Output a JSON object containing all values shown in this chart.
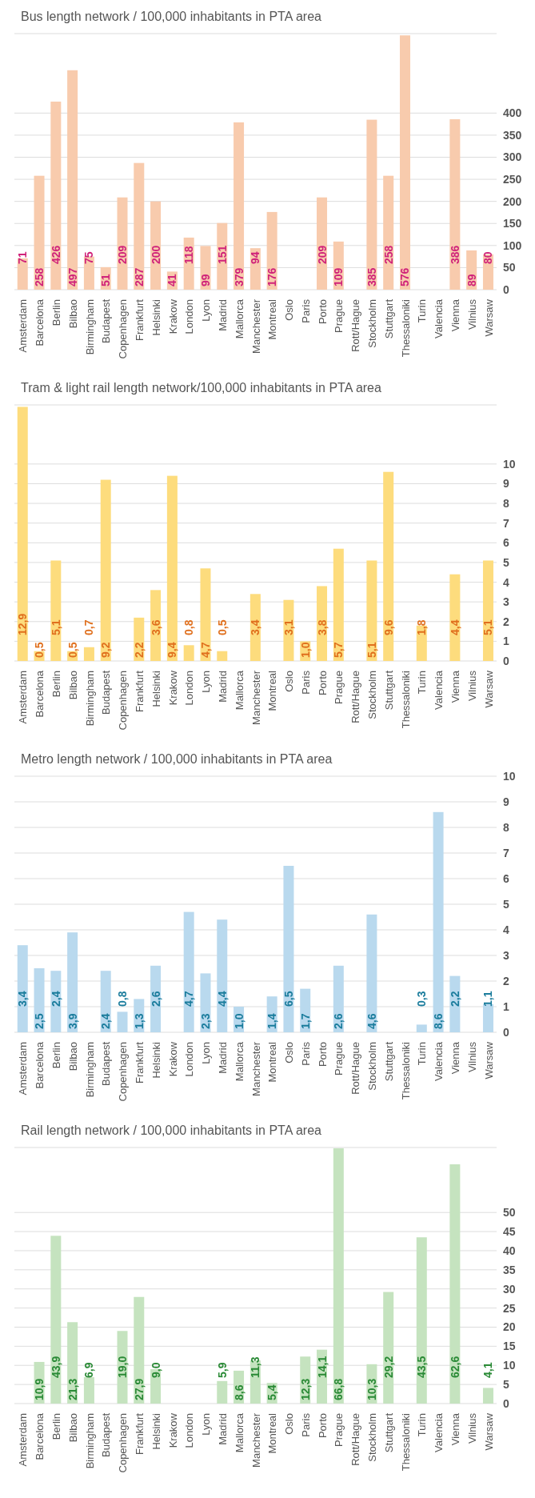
{
  "chart_data": [
    {
      "type": "bar",
      "title": "Bus length network / 100,000  inhabitants in PTA area",
      "categories": [
        "Amsterdam",
        "Barcelona",
        "Berlin",
        "Bilbao",
        "Birmingham",
        "Budapest",
        "Copenhagen",
        "Frankfurt",
        "Helsinki",
        "Krakow",
        "London",
        "Lyon",
        "Madrid",
        "Mallorca",
        "Manchester",
        "Montreal",
        "Oslo",
        "Paris",
        "Porto",
        "Prague",
        "Rott/Hague",
        "Stockholm",
        "Stuttgart",
        "Thessaloniki",
        "Turin",
        "Valencia",
        "Vienna",
        "Vilnius",
        "Warsaw"
      ],
      "values": [
        71,
        258,
        426,
        497,
        75,
        51,
        209,
        287,
        200,
        41,
        118,
        99,
        151,
        379,
        94,
        176,
        null,
        null,
        209,
        109,
        null,
        385,
        258,
        576,
        null,
        null,
        386,
        89,
        80
      ],
      "value_labels": [
        "71",
        "258",
        "426",
        "497",
        "75",
        "51",
        "209",
        "287",
        "200",
        "41",
        "118",
        "99",
        "151",
        "379",
        "94",
        "176",
        null,
        null,
        "209",
        "109",
        null,
        "385",
        "258",
        "576",
        null,
        null,
        "386",
        "89",
        "80"
      ],
      "color": "#f8cbad",
      "ylim": [
        0,
        580
      ],
      "yticks": [
        0,
        50,
        100,
        150,
        200,
        250,
        300,
        350,
        400
      ],
      "grid": "y"
    },
    {
      "type": "bar",
      "title": "Tram & light rail length network/100,000  inhabitants in PTA area",
      "categories": [
        "Amsterdam",
        "Barcelona",
        "Berlin",
        "Bilbao",
        "Birmingham",
        "Budapest",
        "Copenhagen",
        "Frankfurt",
        "Helsinki",
        "Krakow",
        "London",
        "Lyon",
        "Madrid",
        "Mallorca",
        "Manchester",
        "Montreal",
        "Oslo",
        "Paris",
        "Porto",
        "Prague",
        "Rott/Hague",
        "Stockholm",
        "Stuttgart",
        "Thessaloniki",
        "Turin",
        "Valencia",
        "Vienna",
        "Vilnius",
        "Warsaw"
      ],
      "values": [
        12.9,
        0.5,
        5.1,
        0.5,
        0.7,
        9.2,
        null,
        2.2,
        3.6,
        9.4,
        0.8,
        4.7,
        0.5,
        null,
        3.4,
        null,
        3.1,
        1.0,
        3.8,
        5.7,
        null,
        5.1,
        9.6,
        null,
        1.8,
        null,
        4.4,
        null,
        5.1
      ],
      "value_labels": [
        "12,9",
        "0,5",
        "5,1",
        "0,5",
        "0,7",
        "9,2",
        null,
        "2,2",
        "3,6",
        "9,4",
        "0,8",
        "4,7",
        "0,5",
        null,
        "3,4",
        null,
        "3,1",
        "1,0",
        "3,8",
        "5,7",
        null,
        "5,1",
        "9,6",
        null,
        "1,8",
        null,
        "4,4",
        null,
        "5,1"
      ],
      "color": "#fddc7d",
      "ylim": [
        0,
        13
      ],
      "yticks": [
        0,
        1,
        2,
        3,
        4,
        5,
        6,
        7,
        8,
        9,
        10
      ],
      "grid": "y"
    },
    {
      "type": "bar",
      "title": "Metro length network / 100,000 inhabitants in PTA area",
      "categories": [
        "Amsterdam",
        "Barcelona",
        "Berlin",
        "Bilbao",
        "Birmingham",
        "Budapest",
        "Copenhagen",
        "Frankfurt",
        "Helsinki",
        "Krakow",
        "London",
        "Lyon",
        "Madrid",
        "Mallorca",
        "Manchester",
        "Montreal",
        "Oslo",
        "Paris",
        "Porto",
        "Prague",
        "Rott/Hague",
        "Stockholm",
        "Stuttgart",
        "Thessaloniki",
        "Turin",
        "Valencia",
        "Vienna",
        "Vilnius",
        "Warsaw"
      ],
      "values": [
        3.4,
        2.5,
        2.4,
        3.9,
        null,
        2.4,
        0.8,
        1.3,
        2.6,
        null,
        4.7,
        2.3,
        4.4,
        1.0,
        null,
        1.4,
        6.5,
        1.7,
        null,
        2.6,
        null,
        4.6,
        null,
        null,
        0.3,
        8.6,
        2.2,
        null,
        1.1
      ],
      "value_labels": [
        "3,4",
        "2,5",
        "2,4",
        "3,9",
        null,
        "2,4",
        "0,8",
        "1,3",
        "2,6",
        null,
        "4,7",
        "2,3",
        "4,4",
        "1,0",
        null,
        "1,4",
        "6,5",
        "1,7",
        null,
        "2,6",
        null,
        "4,6",
        null,
        null,
        "0,3",
        "8,6",
        "2,2",
        null,
        "1,1"
      ],
      "color": "#b9d9ee",
      "ylim": [
        0,
        10
      ],
      "yticks": [
        0,
        1,
        2,
        3,
        4,
        5,
        6,
        7,
        8,
        9,
        10
      ],
      "grid": "y"
    },
    {
      "type": "bar",
      "title": "Rail length network / 100,000  inhabitants in PTA area",
      "categories": [
        "Amsterdam",
        "Barcelona",
        "Berlin",
        "Bilbao",
        "Birmingham",
        "Budapest",
        "Copenhagen",
        "Frankfurt",
        "Helsinki",
        "Krakow",
        "London",
        "Lyon",
        "Madrid",
        "Mallorca",
        "Manchester",
        "Montreal",
        "Oslo",
        "Paris",
        "Porto",
        "Prague",
        "Rott/Hague",
        "Stockholm",
        "Stuttgart",
        "Thessaloniki",
        "Turin",
        "Valencia",
        "Vienna",
        "Vilnius",
        "Warsaw"
      ],
      "values": [
        null,
        10.9,
        43.9,
        21.3,
        6.9,
        null,
        19.0,
        27.9,
        9.0,
        null,
        null,
        null,
        5.9,
        8.6,
        11.3,
        5.4,
        null,
        12.3,
        14.1,
        66.8,
        null,
        10.3,
        29.2,
        null,
        43.5,
        null,
        62.6,
        null,
        4.1
      ],
      "value_labels": [
        null,
        "10,9",
        "43,9",
        "21,3",
        "6,9",
        null,
        "19,0",
        "27,9",
        "9,0",
        null,
        null,
        null,
        "5,9",
        "8,6",
        "11,3",
        "5,4",
        null,
        "12,3",
        "14,1",
        "66,8",
        null,
        "10,3",
        "29,2",
        null,
        "43,5",
        null,
        "62,6",
        null,
        "4,1"
      ],
      "color": "#c5e3bf",
      "ylim": [
        0,
        67
      ],
      "yticks": [
        0,
        5,
        10,
        15,
        20,
        25,
        30,
        35,
        40,
        45,
        50
      ],
      "grid": "y"
    }
  ]
}
